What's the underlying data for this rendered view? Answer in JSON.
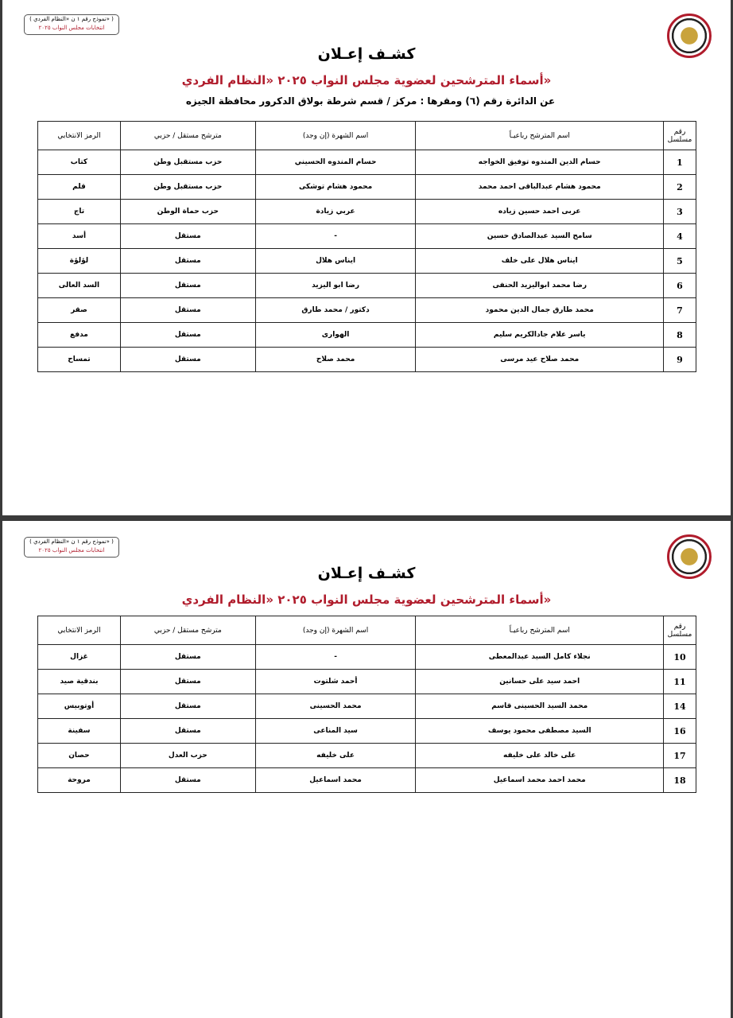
{
  "pages": [
    {
      "form_label": "( نموذج رقم ١ ن «النظام الفردي» )",
      "form_sublabel": "انتخابات مجلس النواب ٢٠٢٥",
      "title": "كشـف إعـلان",
      "subtitle": "أسماء المترشحين لعضوية مجلس النواب ٢٠٢٥ «النظام الفردي»",
      "district": "عن الدائرة رقم (٦) ومقرها : مركز / قسم شرطة بولاق الدكرور محافظة الجيزه",
      "headers": [
        "رقم مسلسل",
        "اسم المترشح رباعيـاً",
        "اسم الشهرة (إن وجد)",
        "مترشح مستقل / حزبي",
        "الرمز الانتخابي"
      ],
      "rows": [
        [
          "1",
          "حسام الدين المندوه توفيق الخواجه",
          "حسام المندوه الحسيني",
          "حزب مستقبل وطن",
          "كتاب"
        ],
        [
          "2",
          "محمود هشام عبدالباقى احمد محمد",
          "محمود هشام توشكى",
          "حزب مستقبل وطن",
          "قلم"
        ],
        [
          "3",
          "عربى احمد حسين زياده",
          "عربي زيادة",
          "حزب حماة الوطن",
          "تاج"
        ],
        [
          "4",
          "سامح السيد عبدالصادق حسين",
          "-",
          "مستقل",
          "أسد"
        ],
        [
          "5",
          "ايناس هلال على خلف",
          "ايناس هلال",
          "مستقل",
          "لؤلؤة"
        ],
        [
          "6",
          "رضا محمد ابواليزيد الحنفى",
          "رضا ابو اليزيد",
          "مستقل",
          "السد العالى"
        ],
        [
          "7",
          "محمد طارق جمال الدين محمود",
          "دكتور / محمد طارق",
          "مستقل",
          "صقر"
        ],
        [
          "8",
          "ياسر علام جادالكريم سليم",
          "الهوارى",
          "مستقل",
          "مدفع"
        ],
        [
          "9",
          "محمد صلاح عيد مرسى",
          "محمد صلاح",
          "مستقل",
          "تمساح"
        ]
      ]
    },
    {
      "form_label": "( نموذج رقم ١ ن «النظام الفردي» )",
      "form_sublabel": "انتخابات مجلس النواب ٢٠٢٥",
      "title": "كشـف إعـلان",
      "subtitle": "أسماء المترشحين لعضوية مجلس النواب ٢٠٢٥ «النظام الفردي»",
      "headers": [
        "رقم مسلسل",
        "اسم المترشح رباعيـاً",
        "اسم الشهرة (إن وجد)",
        "مترشح مستقل / حزبي",
        "الرمز الانتخابي"
      ],
      "rows": [
        [
          "10",
          "نجلاء كامل السيد عبدالمعطى",
          "-",
          "مستقل",
          "غزال"
        ],
        [
          "11",
          "احمد سيد على حسانين",
          "أحمد شلتوت",
          "مستقل",
          "بندقية صيد"
        ],
        [
          "14",
          "محمد السيد الحسينى قاسم",
          "محمد الحسينى",
          "مستقل",
          "أوتوبيس"
        ],
        [
          "16",
          "السيد مصطفى محمود يوسف",
          "سيد المناعى",
          "مستقل",
          "سفينة"
        ],
        [
          "17",
          "على خالد على خليفه",
          "على خليفه",
          "حزب العدل",
          "حصان"
        ],
        [
          "18",
          "محمد احمد محمد اسماعيل",
          "محمد اسماعيل",
          "مستقل",
          "مروحة"
        ]
      ]
    }
  ]
}
